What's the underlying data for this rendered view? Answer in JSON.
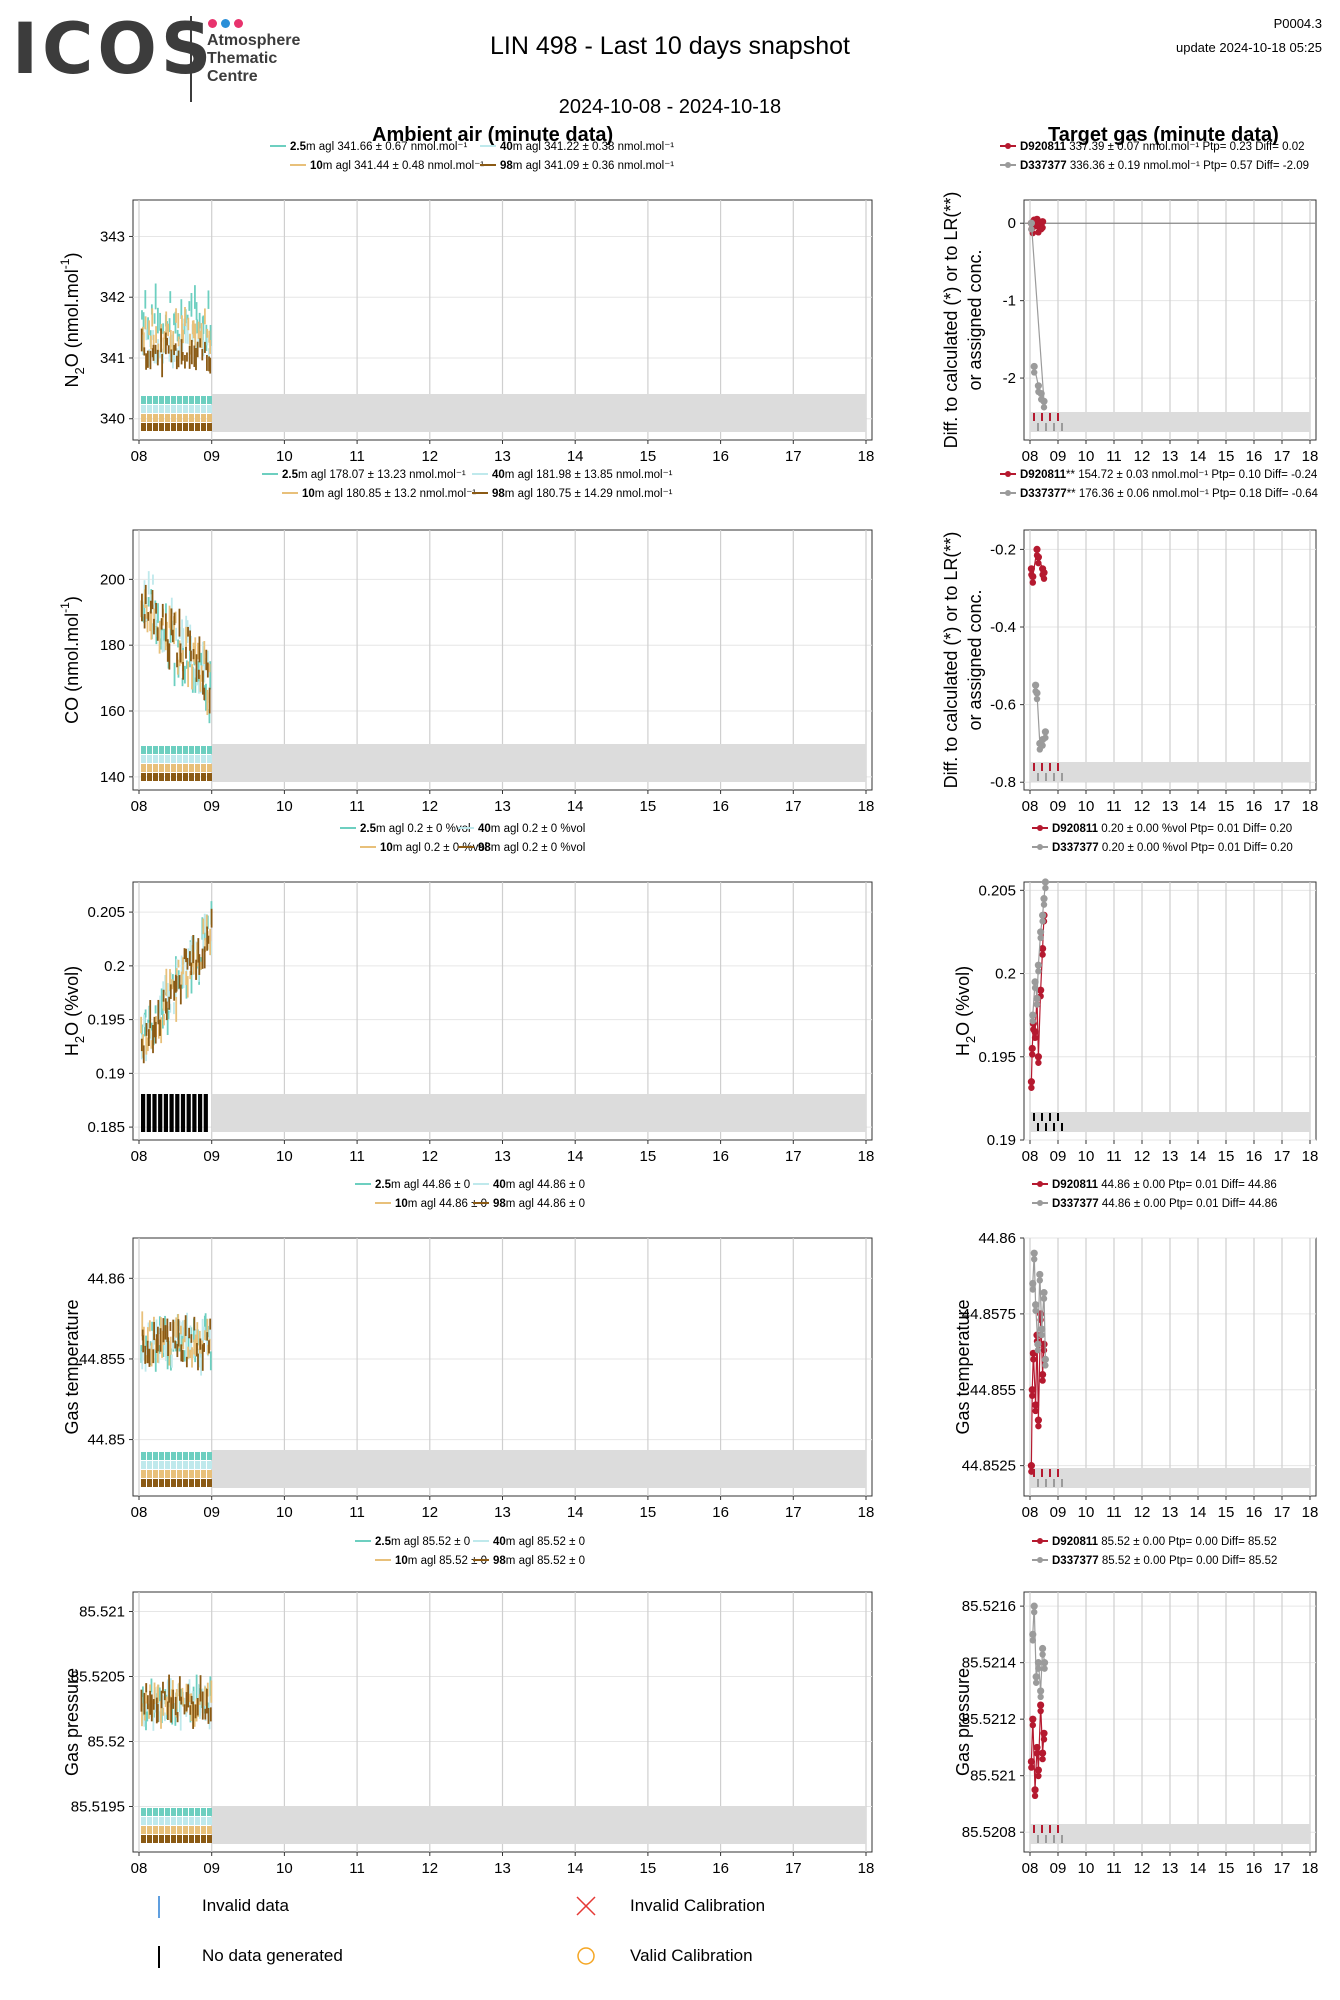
{
  "header": {
    "logo_text": "ICOS",
    "logo_subtitle": [
      "Atmosphere",
      "Thematic",
      "Centre"
    ],
    "logo_dot_colors": [
      "#e8336d",
      "#2a8fd8",
      "#e8336d"
    ],
    "title": "LIN 498 - Last 10 days snapshot",
    "code": "P0004.3",
    "update": "update  2024-10-18 05:25",
    "date_range": "2024-10-08 - 2024-10-18"
  },
  "sections": {
    "ambient_title": "Ambient air (minute data)",
    "target_title": "Target gas (minute data)"
  },
  "colors": {
    "h2.5": "#6dcfc0",
    "h10": "#e8c07a",
    "h40": "#bfe9ec",
    "h98": "#8b5a14",
    "D920811": "#b5192f",
    "D337377": "#9b9b9b",
    "band": "#dcdcdc",
    "grid": "#cfcfcf"
  },
  "footer": {
    "invalid_data": "Invalid data",
    "no_data": "No data generated",
    "invalid_cal": "Invalid Calibration",
    "valid_cal": "Valid Calibration"
  },
  "chart_data": [
    {
      "id": "n2o-ambient",
      "type": "line",
      "ylabel": "N2O (nmol.mol-1)",
      "xlabel": "",
      "x_ticks": [
        "08",
        "09",
        "10",
        "11",
        "12",
        "13",
        "14",
        "15",
        "16",
        "17",
        "18"
      ],
      "ylim": [
        339.65,
        343.6
      ],
      "y_ticks": [
        340,
        341,
        342,
        343
      ],
      "legend": [
        {
          "height": "2.5",
          "text": "m agl 341.66 ± 0.67 nmol.mol⁻¹",
          "color_key": "h2.5"
        },
        {
          "height": "40",
          "text": "m agl 341.22 ± 0.38 nmol.mol⁻¹",
          "color_key": "h40"
        },
        {
          "height": "10",
          "text": "m agl 341.44 ± 0.48 nmol.mol⁻¹",
          "color_key": "h10"
        },
        {
          "height": "98",
          "text": "m agl 341.09 ± 0.36 nmol.mol⁻¹",
          "color_key": "h98"
        }
      ],
      "series_mean": {
        "h2.5": 341.66,
        "h10": 341.44,
        "h40": 341.22,
        "h98": 341.09
      },
      "series_sd": {
        "h2.5": 0.67,
        "h10": 0.48,
        "h40": 0.38,
        "h98": 0.36
      }
    },
    {
      "id": "n2o-target",
      "type": "scatter",
      "ylabel": "Diff. to calculated (*) or to LR(**)|or assigned conc.",
      "x_ticks": [
        "08",
        "09",
        "10",
        "11",
        "12",
        "13",
        "14",
        "15",
        "16",
        "17",
        "18"
      ],
      "ylim": [
        -2.8,
        0.3
      ],
      "y_ticks": [
        0,
        -1,
        -2
      ],
      "hline": 0,
      "legend": [
        {
          "name": "D920811",
          "text": " 337.39 ± 0.07 nmol.mol⁻¹  Ptp= 0.23 Diff= 0.02",
          "color_key": "D920811"
        },
        {
          "name": "D337377",
          "text": " 336.36 ± 0.19 nmol.mol⁻¹  Ptp= 0.57 Diff= -2.09",
          "color_key": "D337377"
        }
      ],
      "points": {
        "D920811": [
          [
            0.05,
            0.0
          ],
          [
            0.1,
            -0.05
          ],
          [
            0.15,
            0.04
          ],
          [
            0.25,
            0.05
          ],
          [
            0.3,
            -0.04
          ],
          [
            0.4,
            0.0
          ],
          [
            0.45,
            0.02
          ]
        ],
        "D337377": [
          [
            0.15,
            -1.85
          ],
          [
            0.3,
            -2.1
          ],
          [
            0.4,
            -2.2
          ],
          [
            0.5,
            -2.3
          ],
          [
            0.05,
            0.0
          ]
        ]
      }
    },
    {
      "id": "co-ambient",
      "type": "line",
      "ylabel": "CO (nmol.mol-1)",
      "x_ticks": [
        "08",
        "09",
        "10",
        "11",
        "12",
        "13",
        "14",
        "15",
        "16",
        "17",
        "18"
      ],
      "ylim": [
        136,
        215
      ],
      "y_ticks": [
        140,
        160,
        180,
        200
      ],
      "legend": [
        {
          "height": "2.5",
          "text": "m agl 178.07 ± 13.23 nmol.mol⁻¹",
          "color_key": "h2.5"
        },
        {
          "height": "40",
          "text": "m agl 181.98 ± 13.85 nmol.mol⁻¹",
          "color_key": "h40"
        },
        {
          "height": "10",
          "text": "m agl 180.85 ± 13.2 nmol.mol⁻¹",
          "color_key": "h10"
        },
        {
          "height": "98",
          "text": "m agl 180.75 ± 14.29 nmol.mol⁻¹",
          "color_key": "h98"
        }
      ],
      "series_mean": {
        "h2.5": 178.07,
        "h10": 180.85,
        "h40": 181.98,
        "h98": 180.75
      },
      "series_sd": {
        "h2.5": 13.23,
        "h10": 13.2,
        "h40": 13.85,
        "h98": 14.29
      }
    },
    {
      "id": "co-target",
      "type": "scatter",
      "ylabel": "Diff. to calculated (*) or to LR(**)|or assigned conc.",
      "x_ticks": [
        "08",
        "09",
        "10",
        "11",
        "12",
        "13",
        "14",
        "15",
        "16",
        "17",
        "18"
      ],
      "ylim": [
        -0.82,
        -0.15
      ],
      "y_ticks": [
        -0.2,
        -0.4,
        -0.6,
        -0.8
      ],
      "legend": [
        {
          "name": "D920811",
          "text": "** 154.72 ± 0.03 nmol.mol⁻¹  Ptp= 0.10 Diff= -0.24",
          "color_key": "D920811"
        },
        {
          "name": "D337377",
          "text": "** 176.36 ± 0.06 nmol.mol⁻¹  Ptp= 0.18 Diff= -0.64",
          "color_key": "D337377"
        }
      ],
      "points": {
        "D920811": [
          [
            0.05,
            -0.25
          ],
          [
            0.1,
            -0.27
          ],
          [
            0.25,
            -0.2
          ],
          [
            0.3,
            -0.22
          ],
          [
            0.45,
            -0.25
          ],
          [
            0.5,
            -0.26
          ]
        ],
        "D337377": [
          [
            0.2,
            -0.55
          ],
          [
            0.25,
            -0.57
          ],
          [
            0.35,
            -0.7
          ],
          [
            0.45,
            -0.69
          ],
          [
            0.55,
            -0.67
          ]
        ]
      }
    },
    {
      "id": "h2o-ambient",
      "type": "line",
      "ylabel": "H2O (%vol)",
      "x_ticks": [
        "08",
        "09",
        "10",
        "11",
        "12",
        "13",
        "14",
        "15",
        "16",
        "17",
        "18"
      ],
      "ylim": [
        0.1838,
        0.2078
      ],
      "y_ticks": [
        0.185,
        0.19,
        0.195,
        0.2,
        0.205
      ],
      "legend": [
        {
          "height": "2.5",
          "text": "m agl 0.2 ± 0 %vol",
          "color_key": "h2.5"
        },
        {
          "height": "40",
          "text": "m agl 0.2 ± 0 %vol",
          "color_key": "h40"
        },
        {
          "height": "10",
          "text": "m agl 0.2 ± 0 %vol",
          "color_key": "h10"
        },
        {
          "height": "98",
          "text": "m agl 0.2 ± 0 %vol",
          "color_key": "h98"
        }
      ],
      "series_mean": {
        "h2.5": 0.2,
        "h10": 0.2,
        "h40": 0.2,
        "h98": 0.2
      },
      "series_sd": {
        "h2.5": 0,
        "h10": 0,
        "h40": 0,
        "h98": 0
      }
    },
    {
      "id": "h2o-target",
      "type": "scatter",
      "ylabel": "H2O (%vol)",
      "x_ticks": [
        "08",
        "09",
        "10",
        "11",
        "12",
        "13",
        "14",
        "15",
        "16",
        "17",
        "18"
      ],
      "ylim": [
        0.19,
        0.2055
      ],
      "y_ticks": [
        0.19,
        0.195,
        0.2,
        0.205
      ],
      "legend": [
        {
          "name": "D920811",
          "text": " 0.20 ± 0.00 %vol  Ptp= 0.01 Diff= 0.20",
          "color_key": "D920811"
        },
        {
          "name": "D337377",
          "text": " 0.20 ± 0.00 %vol  Ptp= 0.01 Diff= 0.20",
          "color_key": "D337377"
        }
      ],
      "points": {
        "D920811": [
          [
            0.05,
            0.1935
          ],
          [
            0.08,
            0.1955
          ],
          [
            0.12,
            0.197
          ],
          [
            0.18,
            0.1965
          ],
          [
            0.25,
            0.1985
          ],
          [
            0.3,
            0.195
          ],
          [
            0.38,
            0.199
          ],
          [
            0.45,
            0.2015
          ],
          [
            0.5,
            0.2035
          ]
        ],
        "D337377": [
          [
            0.1,
            0.1975
          ],
          [
            0.18,
            0.1995
          ],
          [
            0.25,
            0.1985
          ],
          [
            0.3,
            0.2005
          ],
          [
            0.38,
            0.2025
          ],
          [
            0.45,
            0.2035
          ],
          [
            0.5,
            0.2045
          ],
          [
            0.55,
            0.2055
          ]
        ]
      }
    },
    {
      "id": "temp-ambient",
      "type": "line",
      "ylabel": "Gas temperature",
      "x_ticks": [
        "08",
        "09",
        "10",
        "11",
        "12",
        "13",
        "14",
        "15",
        "16",
        "17",
        "18"
      ],
      "ylim": [
        44.8465,
        44.8625
      ],
      "y_ticks": [
        44.85,
        44.855,
        44.86
      ],
      "legend": [
        {
          "height": "2.5",
          "text": "m agl 44.86 ± 0",
          "color_key": "h2.5"
        },
        {
          "height": "40",
          "text": "m agl 44.86 ± 0",
          "color_key": "h40"
        },
        {
          "height": "10",
          "text": "m agl 44.86 ± 0",
          "color_key": "h10"
        },
        {
          "height": "98",
          "text": "m agl 44.86 ± 0",
          "color_key": "h98"
        }
      ],
      "series_mean": {
        "h2.5": 44.856,
        "h10": 44.856,
        "h40": 44.856,
        "h98": 44.856
      },
      "series_sd": {
        "h2.5": 0.002,
        "h10": 0.002,
        "h40": 0.002,
        "h98": 0.002
      }
    },
    {
      "id": "temp-target",
      "type": "scatter",
      "ylabel": "Gas temperature",
      "x_ticks": [
        "08",
        "09",
        "10",
        "11",
        "12",
        "13",
        "14",
        "15",
        "16",
        "17",
        "18"
      ],
      "ylim": [
        44.8515,
        44.86
      ],
      "y_ticks": [
        44.8525,
        44.855,
        44.8575,
        44.86
      ],
      "legend": [
        {
          "name": "D920811",
          "text": " 44.86 ± 0.00  Ptp= 0.01 Diff= 44.86",
          "color_key": "D920811"
        },
        {
          "name": "D337377",
          "text": " 44.86 ± 0.00  Ptp= 0.01 Diff= 44.86",
          "color_key": "D337377"
        }
      ],
      "points": {
        "D920811": [
          [
            0.05,
            44.8525
          ],
          [
            0.08,
            44.855
          ],
          [
            0.12,
            44.8562
          ],
          [
            0.2,
            44.8545
          ],
          [
            0.25,
            44.8568
          ],
          [
            0.3,
            44.854
          ],
          [
            0.38,
            44.8575
          ],
          [
            0.45,
            44.8555
          ],
          [
            0.5,
            44.8565
          ]
        ],
        "D337377": [
          [
            0.1,
            44.8585
          ],
          [
            0.15,
            44.8595
          ],
          [
            0.2,
            44.8578
          ],
          [
            0.28,
            44.8565
          ],
          [
            0.35,
            44.8588
          ],
          [
            0.42,
            44.857
          ],
          [
            0.5,
            44.8582
          ],
          [
            0.55,
            44.856
          ]
        ]
      }
    },
    {
      "id": "pres-ambient",
      "type": "line",
      "ylabel": "Gas pressure",
      "x_ticks": [
        "08",
        "09",
        "10",
        "11",
        "12",
        "13",
        "14",
        "15",
        "16",
        "17",
        "18"
      ],
      "ylim": [
        85.51915,
        85.52115
      ],
      "y_ticks": [
        85.5195,
        85.52,
        85.5205,
        85.521
      ],
      "legend": [
        {
          "height": "2.5",
          "text": "m agl 85.52 ± 0",
          "color_key": "h2.5"
        },
        {
          "height": "40",
          "text": "m agl 85.52 ± 0",
          "color_key": "h40"
        },
        {
          "height": "10",
          "text": "m agl 85.52 ± 0",
          "color_key": "h10"
        },
        {
          "height": "98",
          "text": "m agl 85.52 ± 0",
          "color_key": "h98"
        }
      ],
      "series_mean": {
        "h2.5": 85.5203,
        "h10": 85.5203,
        "h40": 85.5203,
        "h98": 85.5203
      },
      "series_sd": {
        "h2.5": 0.0002,
        "h10": 0.0002,
        "h40": 0.0002,
        "h98": 0.0002
      }
    },
    {
      "id": "pres-target",
      "type": "scatter",
      "ylabel": "Gas pressure",
      "x_ticks": [
        "08",
        "09",
        "10",
        "11",
        "12",
        "13",
        "14",
        "15",
        "16",
        "17",
        "18"
      ],
      "ylim": [
        85.52073,
        85.52165
      ],
      "y_ticks": [
        85.5208,
        85.521,
        85.5212,
        85.5214,
        85.5216
      ],
      "legend": [
        {
          "name": "D920811",
          "text": " 85.52 ± 0.00  Ptp= 0.00 Diff= 85.52",
          "color_key": "D920811"
        },
        {
          "name": "D337377",
          "text": " 85.52 ± 0.00  Ptp= 0.00 Diff= 85.52",
          "color_key": "D337377"
        }
      ],
      "points": {
        "D920811": [
          [
            0.05,
            85.52105
          ],
          [
            0.1,
            85.5212
          ],
          [
            0.18,
            85.52095
          ],
          [
            0.25,
            85.5211
          ],
          [
            0.3,
            85.52102
          ],
          [
            0.38,
            85.52125
          ],
          [
            0.45,
            85.52108
          ],
          [
            0.5,
            85.52115
          ]
        ],
        "D337377": [
          [
            0.1,
            85.5215
          ],
          [
            0.15,
            85.5216
          ],
          [
            0.22,
            85.52135
          ],
          [
            0.3,
            85.5214
          ],
          [
            0.38,
            85.5213
          ],
          [
            0.45,
            85.52145
          ],
          [
            0.52,
            85.5214
          ]
        ]
      }
    }
  ]
}
